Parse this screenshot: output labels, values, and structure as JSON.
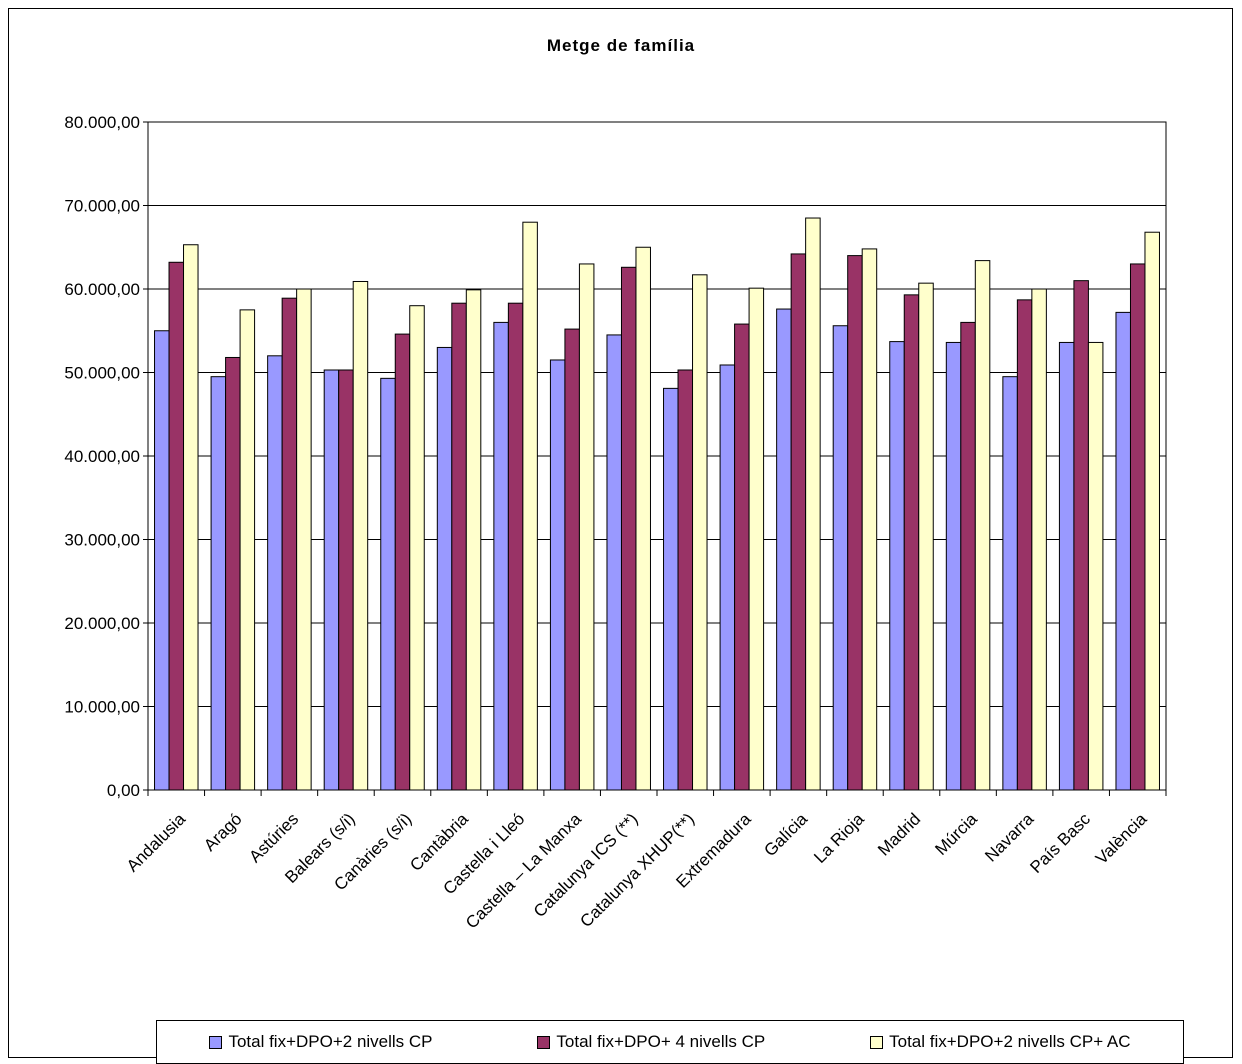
{
  "chart_data": {
    "type": "bar",
    "title": "Metge de família",
    "xlabel": "",
    "ylabel": "",
    "ylim": [
      0,
      80000
    ],
    "yticks": [
      "0,00",
      "10.000,00",
      "20.000,00",
      "30.000,00",
      "40.000,00",
      "50.000,00",
      "60.000,00",
      "70.000,00",
      "80.000,00"
    ],
    "grid": true,
    "legend_position": "bottom",
    "categories": [
      "Andalusia",
      "Aragó",
      "Astúries",
      "Balears (s/i)",
      "Canàries (s/i)",
      "Cantàbria",
      "Castella i Lleó",
      "Castella – La Manxa",
      "Catalunya ICS (**)",
      "Catalunya XHUP(**)",
      "Extremadura",
      "Galícia",
      "La Rioja",
      "Madrid",
      "Múrcia",
      "Navarra",
      "País Basc",
      "València"
    ],
    "series": [
      {
        "name": "Total fix+DPO+2 nivells CP",
        "color": "#9999ff",
        "values": [
          55000,
          49500,
          52000,
          50300,
          49300,
          53000,
          56000,
          51500,
          54500,
          48100,
          50900,
          57600,
          55600,
          53700,
          53600,
          49500,
          53600,
          57200
        ]
      },
      {
        "name": "Total fix+DPO+ 4 nivells CP",
        "color": "#993366",
        "values": [
          63200,
          51800,
          58900,
          50300,
          54600,
          58300,
          58300,
          55200,
          62600,
          50300,
          55800,
          64200,
          64000,
          59300,
          56000,
          58700,
          61000,
          63000
        ]
      },
      {
        "name": "Total fix+DPO+2 nivells CP+ AC",
        "color": "#ffffcc",
        "values": [
          65300,
          57500,
          60000,
          60900,
          58000,
          59900,
          68000,
          63000,
          65000,
          61700,
          60100,
          68500,
          64800,
          60700,
          63400,
          60000,
          53600,
          66800
        ]
      }
    ]
  }
}
